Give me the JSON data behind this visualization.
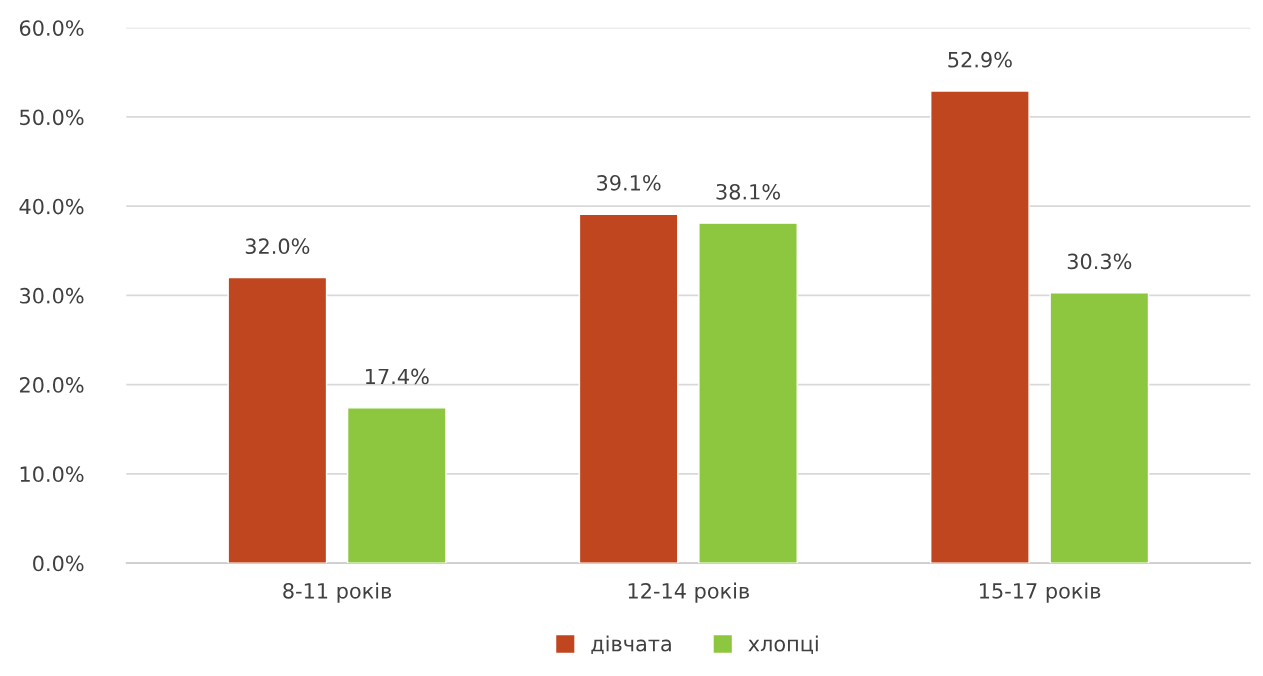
{
  "chart_data": {
    "type": "bar",
    "categories": [
      "8-11 років",
      "12-14 років",
      "15-17 років"
    ],
    "series": [
      {
        "name": "дівчата",
        "color": "#c0461f",
        "values": [
          32.0,
          39.1,
          52.9
        ],
        "value_labels": [
          "32.0%",
          "39.1%",
          "52.9%"
        ]
      },
      {
        "name": "хлопці",
        "color": "#8dc63f",
        "values": [
          17.4,
          38.1,
          30.3
        ],
        "value_labels": [
          "17.4%",
          "38.1%",
          "30.3%"
        ]
      }
    ],
    "ylim": [
      0,
      60
    ],
    "yticks": [
      {
        "value": 0,
        "label": "0.0%"
      },
      {
        "value": 10,
        "label": "10.0%"
      },
      {
        "value": 20,
        "label": "20.0%"
      },
      {
        "value": 30,
        "label": "30.0%"
      },
      {
        "value": 40,
        "label": "40.0%"
      },
      {
        "value": 50,
        "label": "50.0%"
      },
      {
        "value": 60,
        "label": "60.0%"
      }
    ],
    "grid": "y",
    "legend": "bottom"
  }
}
